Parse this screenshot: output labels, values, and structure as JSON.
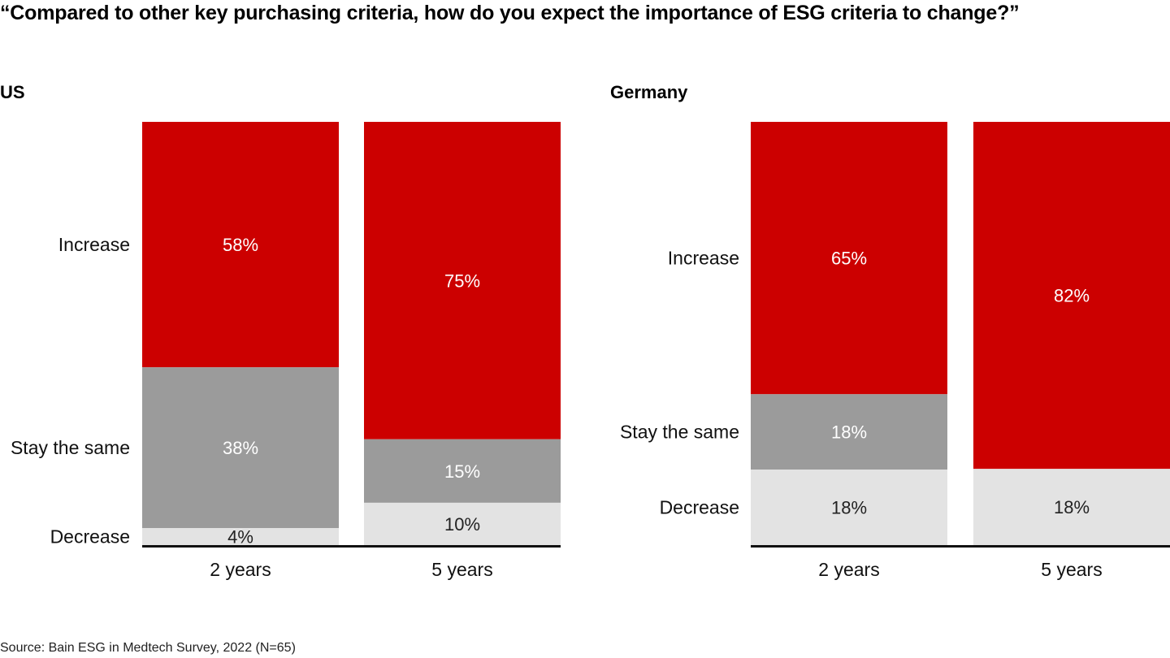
{
  "chart_data": {
    "type": "bar",
    "stacked": true,
    "title": "“Compared to other key purchasing criteria, how do you expect the importance of ESG criteria to change?”",
    "source": "Source: Bain ESG in Medtech Survey, 2022 (N=65)",
    "categories": [
      "2 years",
      "5 years"
    ],
    "series_colors": {
      "Increase": "#cc0000",
      "Stay the same": "#9b9b9b",
      "Decrease": "#e3e3e3"
    },
    "label_colors": {
      "Increase": "#ffffff",
      "Stay the same": "#ffffff",
      "Decrease": "#222222"
    },
    "panels": [
      {
        "name": "US",
        "series": [
          {
            "name": "Increase",
            "values": [
              58,
              75
            ]
          },
          {
            "name": "Stay the same",
            "values": [
              38,
              15
            ]
          },
          {
            "name": "Decrease",
            "values": [
              4,
              10
            ]
          }
        ]
      },
      {
        "name": "Germany",
        "series": [
          {
            "name": "Increase",
            "values": [
              65,
              82
            ]
          },
          {
            "name": "Stay the same",
            "values": [
              18,
              0
            ]
          },
          {
            "name": "Decrease",
            "values": [
              18,
              18
            ]
          }
        ]
      }
    ],
    "unit": "%",
    "grid": false,
    "legend": "row labels left of each panel"
  }
}
